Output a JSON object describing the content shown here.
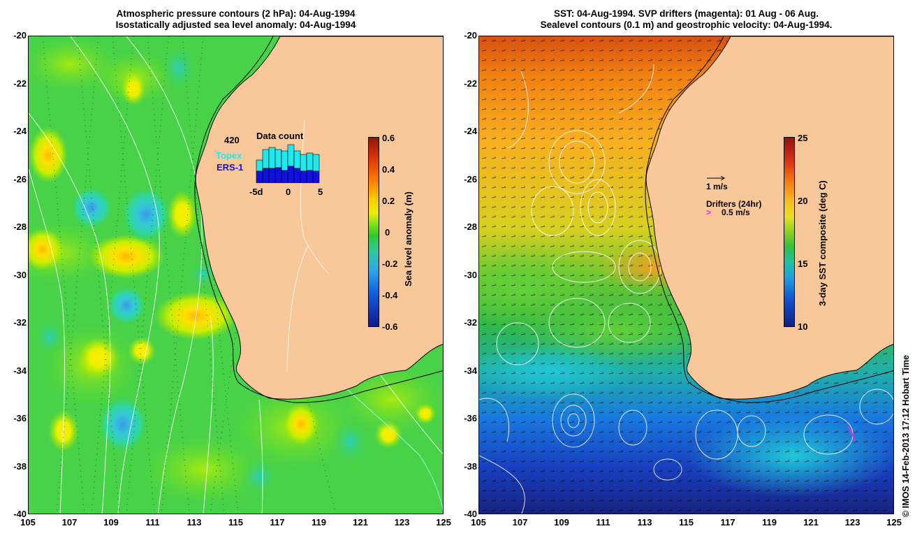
{
  "left_panel": {
    "title_line1": "Atmospheric pressure contours (2 hPa): 04-Aug-1994",
    "title_line2": "Isostatically adjusted sea level anomaly: 04-Aug-1994",
    "colorbar": {
      "title": "Sea level anomaly (m)",
      "ticks": [
        "0.6",
        "0.4",
        "0.2",
        "0",
        "-0.2",
        "-0.4",
        "-0.6"
      ]
    },
    "data_count": {
      "title": "Data count",
      "max_label": "420",
      "series1": "Topex",
      "series2": "ERS-1",
      "xticks": [
        "-5d",
        "0",
        "5"
      ],
      "series1_color": "#22e8ee",
      "series2_color": "#1010e0"
    }
  },
  "right_panel": {
    "title_line1": "SST: 04-Aug-1994. SVP drifters (magenta): 01 Aug - 06 Aug.",
    "title_line2": "Sealevel contours (0.1 m) and geostrophic velocity: 04-Aug-1994.",
    "colorbar": {
      "title": "3-day SST composite (deg C)",
      "ticks": [
        "25",
        "20",
        "15",
        "10"
      ]
    },
    "velocity_legend": "1 m/s",
    "drifter_legend_title": "Drifters (24hr)",
    "drifter_legend_value": "0.5 m/s",
    "drifter_color": "#ee22ee"
  },
  "axes": {
    "y_ticks": [
      "-20",
      "-22",
      "-24",
      "-26",
      "-28",
      "-30",
      "-32",
      "-34",
      "-36",
      "-38",
      "-40"
    ],
    "x_ticks": [
      "105",
      "107",
      "109",
      "111",
      "113",
      "115",
      "117",
      "119",
      "121",
      "123",
      "125"
    ]
  },
  "credit": "© IMOS 14-Feb-2013 17:12 Hobart Time",
  "colors": {
    "land": "#f9c89a",
    "coast_green": "#22b838",
    "contour": "#ffffff"
  }
}
